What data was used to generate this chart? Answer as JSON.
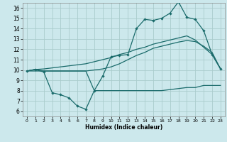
{
  "xlabel": "Humidex (Indice chaleur)",
  "background_color": "#cce8ec",
  "grid_color": "#aacccc",
  "line_color": "#1a6b6b",
  "xlim": [
    -0.5,
    23.5
  ],
  "ylim": [
    5.5,
    16.5
  ],
  "xticks": [
    0,
    1,
    2,
    3,
    4,
    5,
    6,
    7,
    8,
    9,
    10,
    11,
    12,
    13,
    14,
    15,
    16,
    17,
    18,
    19,
    20,
    21,
    22,
    23
  ],
  "yticks": [
    6,
    7,
    8,
    9,
    10,
    11,
    12,
    13,
    14,
    15,
    16
  ],
  "line1_x": [
    0,
    1,
    2,
    3,
    4,
    5,
    6,
    7,
    8,
    9,
    10,
    11,
    12,
    13,
    14,
    15,
    16,
    17,
    18,
    19,
    20,
    21,
    22,
    23
  ],
  "line1_y": [
    9.9,
    10.05,
    9.8,
    7.8,
    7.6,
    7.3,
    6.5,
    6.2,
    8.0,
    9.4,
    11.3,
    11.4,
    11.5,
    14.0,
    14.9,
    14.8,
    15.0,
    15.5,
    16.6,
    15.1,
    14.9,
    13.8,
    11.5,
    10.1
  ],
  "line2_x": [
    0,
    1,
    2,
    3,
    4,
    5,
    6,
    7,
    8,
    9,
    10,
    11,
    12,
    13,
    14,
    15,
    16,
    17,
    18,
    19,
    20,
    21,
    22,
    23
  ],
  "line2_y": [
    9.9,
    10.05,
    10.1,
    10.2,
    10.3,
    10.4,
    10.5,
    10.6,
    10.8,
    11.0,
    11.2,
    11.5,
    11.7,
    12.0,
    12.2,
    12.5,
    12.7,
    12.9,
    13.1,
    13.3,
    12.9,
    12.2,
    11.5,
    10.1
  ],
  "line3_x": [
    0,
    1,
    2,
    3,
    4,
    5,
    6,
    7,
    8,
    9,
    10,
    11,
    12,
    13,
    14,
    15,
    16,
    17,
    18,
    19,
    20,
    21,
    22,
    23
  ],
  "line3_y": [
    9.9,
    10.05,
    9.9,
    9.9,
    9.9,
    9.9,
    9.9,
    9.9,
    10.0,
    10.1,
    10.3,
    10.6,
    11.0,
    11.4,
    11.7,
    12.1,
    12.3,
    12.5,
    12.7,
    12.85,
    12.75,
    12.3,
    11.7,
    10.1
  ],
  "line4_x": [
    0,
    2,
    3,
    4,
    5,
    6,
    7,
    8,
    9,
    10,
    11,
    12,
    13,
    14,
    15,
    16,
    17,
    18,
    19,
    20,
    21,
    22,
    23
  ],
  "line4_y": [
    9.9,
    9.9,
    9.9,
    9.9,
    9.9,
    9.9,
    9.9,
    8.0,
    8.0,
    8.0,
    8.0,
    8.0,
    8.0,
    8.0,
    8.0,
    8.0,
    8.1,
    8.2,
    8.3,
    8.3,
    8.5,
    8.5,
    8.5
  ]
}
